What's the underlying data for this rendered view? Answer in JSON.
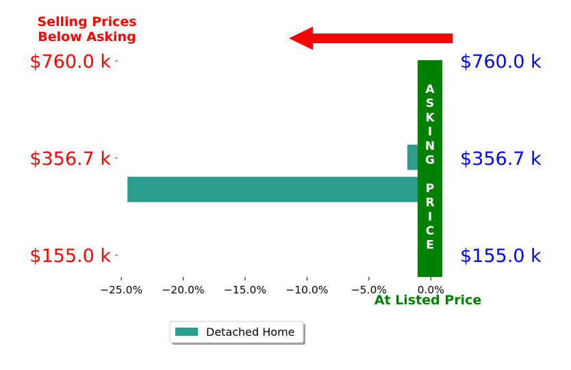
{
  "chart_data": {
    "type": "bar",
    "orientation": "horizontal",
    "categories": [
      "$760.0 k",
      "$356.7 k",
      "$155.0 k"
    ],
    "series": [
      {
        "name": "Detached Home",
        "values": [
          null,
          -1.9,
          -24.5
        ],
        "color": "#2a9d8f"
      }
    ],
    "x_tick_labels": [
      "−25.0%",
      "−20.0%",
      "−15.0%",
      "−10.0%",
      "−5.0%",
      "0.0%"
    ],
    "x_ticks": [
      -25,
      -20,
      -15,
      -10,
      -5,
      0
    ],
    "xlim": [
      -26.5,
      1.2
    ],
    "grid": false,
    "legend_position": "bottom-center",
    "left_label_color": "#ff0000",
    "right_label_color": "#0000ff",
    "annotations": {
      "below_asking": [
        "Selling Prices",
        "Below Asking"
      ],
      "at_listed": "At Listed Price",
      "asking_price_letters": [
        "A",
        "S",
        "K",
        "I",
        "N",
        "G",
        "",
        "P",
        "R",
        "I",
        "C",
        "E"
      ]
    },
    "asking_bar_color": "#008000",
    "arrow_color": "#ff0000",
    "arrow_direction": "left"
  }
}
